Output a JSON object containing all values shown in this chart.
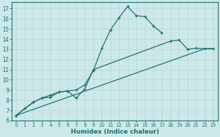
{
  "xlabel": "Humidex (Indice chaleur)",
  "xlim": [
    -0.5,
    23.5
  ],
  "ylim": [
    6,
    17.6
  ],
  "xticks": [
    0,
    1,
    2,
    3,
    4,
    5,
    6,
    7,
    8,
    9,
    10,
    11,
    12,
    13,
    14,
    15,
    16,
    17,
    18,
    19,
    20,
    21,
    22,
    23
  ],
  "yticks": [
    6,
    7,
    8,
    9,
    10,
    11,
    12,
    13,
    14,
    15,
    16,
    17
  ],
  "bg_color": "#cce8e8",
  "line_color": "#1a6e6e",
  "grid_color_major": "#b8d8d8",
  "line1_x": [
    0,
    1,
    2,
    3,
    4,
    5,
    6,
    7,
    8,
    9,
    10,
    11,
    12,
    13,
    14,
    15,
    16,
    17
  ],
  "line1_y": [
    6.5,
    7.2,
    7.8,
    8.2,
    8.3,
    8.8,
    8.9,
    9.0,
    9.5,
    10.9,
    13.1,
    14.9,
    16.1,
    17.2,
    16.3,
    16.2,
    15.3,
    14.6
  ],
  "line2_x": [
    0,
    2,
    3,
    4,
    5,
    6,
    7,
    8,
    9,
    18,
    19,
    20,
    21,
    22,
    23
  ],
  "line2_y": [
    6.5,
    7.8,
    8.2,
    8.5,
    8.8,
    8.9,
    8.2,
    9.1,
    11.0,
    13.8,
    13.9,
    13.0,
    13.1,
    13.05,
    13.05
  ],
  "line3_x": [
    0,
    22,
    23
  ],
  "line3_y": [
    6.5,
    13.05,
    13.05
  ],
  "fontsize_tick": 5.0,
  "fontsize_xlabel": 6.5
}
